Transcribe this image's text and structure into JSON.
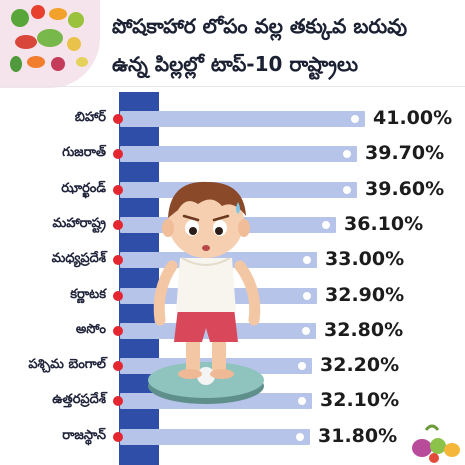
{
  "header": {
    "title_line1": "పోషకాహార లోపం వల్ల తక్కువ బరువు",
    "title_line2": "ఉన్న పిల్లల్లో టాప్-10 రాష్ట్రాలు"
  },
  "colors": {
    "pole": "#2f4ea8",
    "bar": "#b6c4ea",
    "marker": "#e3262f"
  },
  "chart_data": {
    "type": "bar",
    "orientation": "horizontal",
    "categories": [
      "బిహార్",
      "గుజరాత్",
      "ఝార్ఖండ్",
      "మహారాష్ట్ర",
      "మధ్యప్రదేశ్",
      "కర్ణాటక",
      "అసోం",
      "పశ్చిమ బెంగాల్",
      "ఉత్తరప్రదేశ్",
      "రాజస్థాన్"
    ],
    "values": [
      41.0,
      39.7,
      39.6,
      36.1,
      33.0,
      32.9,
      32.8,
      32.2,
      32.1,
      31.8
    ],
    "value_labels": [
      "41.00%",
      "39.70%",
      "39.60%",
      "36.10%",
      "33.00%",
      "32.90%",
      "32.80%",
      "32.20%",
      "32.10%",
      "31.80%"
    ],
    "title": "పోషకాహార లోపం వల్ల తక్కువ బరువు ఉన్న పిల్లల్లో టాప్-10 రాష్ట్రాలు",
    "xlabel": "",
    "ylabel": "",
    "grid": false,
    "legend": "none"
  }
}
